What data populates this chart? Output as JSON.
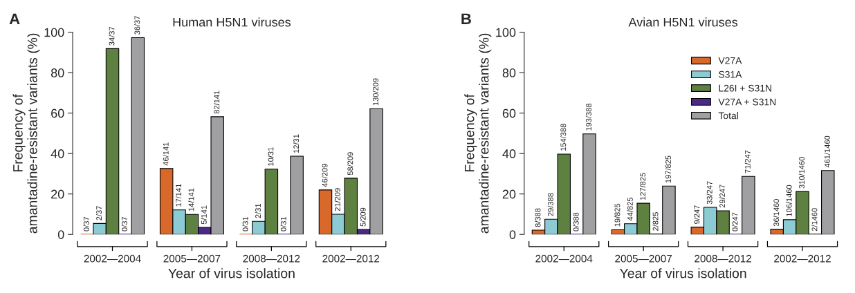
{
  "chart_data": [
    {
      "type": "bar",
      "title": "Human H5N1 viruses",
      "xlabel": "Year of virus isolation",
      "ylabel": "Frequency of\namantadine-resistant variants (%)",
      "annotations": [
        "A"
      ],
      "categories": [
        "2002—2004",
        "2005—2007",
        "2008—2012",
        "2002—2012"
      ],
      "series": [
        {
          "color": "#d9692b",
          "values": [
            0,
            32.6,
            0,
            22.0
          ],
          "value_labels": [
            "0/37",
            "46/141",
            "0/31",
            "46/209"
          ]
        },
        {
          "color": "#8ccbd3",
          "values": [
            5.4,
            12.1,
            6.5,
            10.0
          ],
          "value_labels": [
            "2/37",
            "17/141",
            "2/31",
            "21/209"
          ]
        },
        {
          "color": "#5e8040",
          "values": [
            91.9,
            9.9,
            32.3,
            27.8
          ],
          "value_labels": [
            "34/37",
            "14/141",
            "10/31",
            "58/209"
          ]
        },
        {
          "color": "#4b2a86",
          "values": [
            0,
            3.5,
            0,
            2.4
          ],
          "value_labels": [
            "0/37",
            "5/141",
            "0/31",
            "5/209"
          ]
        },
        {
          "color": "#a0a0a2",
          "values": [
            97.3,
            58.2,
            38.7,
            62.2
          ],
          "value_labels": [
            "36/37",
            "82/141",
            "12/31",
            "130/209"
          ]
        }
      ],
      "ylim": [
        0,
        100
      ],
      "yticks": [
        0,
        20,
        40,
        60,
        80,
        100
      ],
      "grid": false,
      "legend": false
    },
    {
      "type": "bar",
      "title": "Avian H5N1 viruses",
      "xlabel": "Year of virus isolation",
      "ylabel": "Frequency of\namantadine-resistant variants (%)",
      "annotations": [
        "B"
      ],
      "categories": [
        "2002—2004",
        "2005—2007",
        "2008—2012",
        "2002—2012"
      ],
      "series": [
        {
          "name": "V27A",
          "color": "#d9692b",
          "values": [
            2.1,
            2.3,
            3.6,
            2.5
          ],
          "value_labels": [
            "8/388",
            "19/825",
            "9/247",
            "36/1460"
          ]
        },
        {
          "name": "S31A",
          "color": "#8ccbd3",
          "values": [
            7.5,
            5.3,
            13.4,
            7.3
          ],
          "value_labels": [
            "29/388",
            "44/825",
            "33/247",
            "106/1460"
          ]
        },
        {
          "name": "L26I + S31N",
          "color": "#5e8040",
          "values": [
            39.7,
            15.4,
            11.7,
            21.2
          ],
          "value_labels": [
            "154/388",
            "127/825",
            "29/247",
            "310/1460"
          ]
        },
        {
          "name": "V27A + S31N",
          "color": "#4b2a86",
          "values": [
            0,
            0.2,
            0,
            0.1
          ],
          "value_labels": [
            "0/388",
            "2/825",
            "0/247",
            "2/1460"
          ]
        },
        {
          "name": "Total",
          "color": "#a0a0a2",
          "values": [
            49.7,
            23.9,
            28.7,
            31.6
          ],
          "value_labels": [
            "193/388",
            "197/825",
            "71/247",
            "461/1460"
          ]
        }
      ],
      "ylim": [
        0,
        100
      ],
      "yticks": [
        0,
        20,
        40,
        60,
        80,
        100
      ],
      "grid": false,
      "legend": "top right"
    }
  ]
}
